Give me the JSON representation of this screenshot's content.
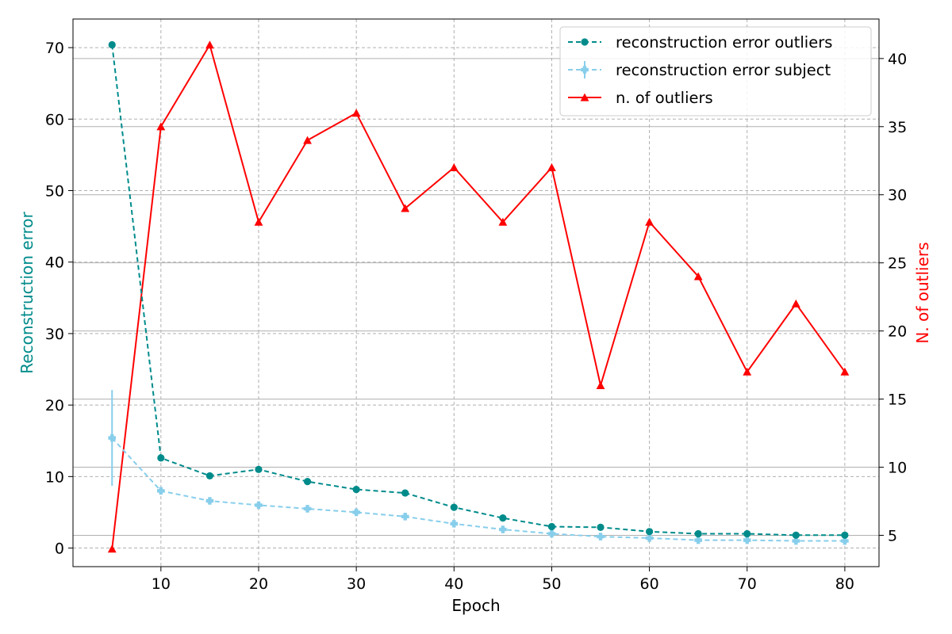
{
  "chart_data": {
    "type": "line",
    "xlabel": "Epoch",
    "ylabel_left": "Reconstruction error",
    "ylabel_right": "N. of outliers",
    "xlim": [
      1,
      83.5
    ],
    "ylim_left": [
      -2.6,
      74
    ],
    "ylim_right": [
      2.7,
      42.9
    ],
    "x_ticks": [
      10,
      20,
      30,
      40,
      50,
      60,
      70,
      80
    ],
    "y_ticks_left": [
      0,
      10,
      20,
      30,
      40,
      50,
      60,
      70
    ],
    "y_ticks_right": [
      5,
      10,
      15,
      20,
      25,
      30,
      35,
      40
    ],
    "grid": true,
    "legend_position": "top-right",
    "x": [
      5,
      10,
      15,
      20,
      25,
      30,
      35,
      40,
      45,
      50,
      55,
      60,
      65,
      70,
      75,
      80
    ],
    "series": [
      {
        "name": "reconstruction error outliers",
        "axis": "left",
        "color": "#008b8b",
        "style": "dashed",
        "marker": "circle",
        "values": [
          70.4,
          12.6,
          10.1,
          11.0,
          9.3,
          8.2,
          7.7,
          5.7,
          4.2,
          3.0,
          2.9,
          2.3,
          2.0,
          2.0,
          1.8,
          1.8
        ]
      },
      {
        "name": "reconstruction error subject",
        "axis": "left",
        "color": "#87ceeb",
        "style": "dashed",
        "marker": "plus",
        "values": [
          15.4,
          8.0,
          6.6,
          6.0,
          5.5,
          5.0,
          4.4,
          3.4,
          2.6,
          2.0,
          1.6,
          1.4,
          1.1,
          1.1,
          1.0,
          1.0
        ],
        "error": [
          6.7,
          0,
          0,
          0,
          0,
          0,
          0,
          0,
          0,
          0,
          0,
          0,
          0,
          0,
          0,
          0
        ]
      },
      {
        "name": "n. of outliers",
        "axis": "right",
        "color": "#ff0000",
        "style": "solid",
        "marker": "triangle",
        "values": [
          4,
          35,
          41,
          28,
          34,
          36,
          29,
          32,
          28,
          32,
          16,
          28,
          24,
          17,
          22,
          17
        ]
      }
    ]
  }
}
